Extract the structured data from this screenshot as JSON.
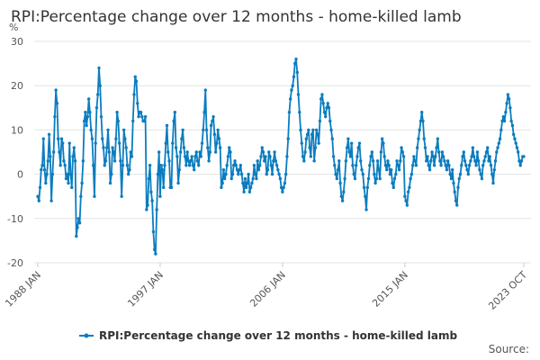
{
  "chart_data": {
    "type": "line",
    "title": "RPI:Percentage change over 12 months - home-killed lamb",
    "y_label": "%",
    "source": "Source:",
    "categories": [
      "1988 JAN",
      null,
      null,
      null,
      null,
      null,
      null,
      null,
      null,
      null,
      null,
      null,
      null,
      null,
      null,
      null,
      null,
      null,
      null,
      null,
      null,
      null,
      null,
      null,
      null,
      null,
      null,
      null,
      null,
      null,
      null,
      null,
      null,
      null,
      null,
      null,
      null,
      null,
      null,
      null,
      null,
      null,
      null,
      null,
      null,
      null,
      null,
      null,
      null,
      null,
      null,
      null,
      null,
      null,
      null,
      null,
      null,
      null,
      null,
      null,
      null,
      null,
      null,
      null,
      null,
      null,
      null,
      null,
      null,
      null,
      null,
      null,
      null,
      null,
      null,
      null,
      null,
      null,
      null,
      null,
      null,
      null,
      null,
      null,
      null,
      null,
      null,
      null,
      null,
      null,
      null,
      null,
      null,
      null,
      null,
      null,
      null,
      null,
      null,
      null,
      null,
      null,
      null,
      null,
      null,
      null,
      null,
      null,
      "1997 JAN",
      null,
      null,
      null,
      null,
      null,
      null,
      null,
      null,
      null,
      null,
      null,
      null,
      null,
      null,
      null,
      null,
      null,
      null,
      null,
      null,
      null,
      null,
      null,
      null,
      null,
      null,
      null,
      null,
      null,
      null,
      null,
      null,
      null,
      null,
      null,
      null,
      null,
      null,
      null,
      null,
      null,
      null,
      null,
      null,
      null,
      null,
      null,
      null,
      null,
      null,
      null,
      null,
      null,
      null,
      null,
      null,
      null,
      null,
      null,
      null,
      null,
      null,
      null,
      null,
      null,
      null,
      null,
      null,
      null,
      null,
      null,
      null,
      null,
      null,
      null,
      null,
      null,
      null,
      null,
      null,
      null,
      null,
      null,
      null,
      null,
      null,
      null,
      null,
      null,
      null,
      null,
      null,
      null,
      null,
      null,
      null,
      null,
      null,
      null,
      null,
      null,
      null,
      null,
      null,
      null,
      null,
      null,
      "2006 JAN",
      null,
      null,
      null,
      null,
      null,
      null,
      null,
      null,
      null,
      null,
      null,
      null,
      null,
      null,
      null,
      null,
      null,
      null,
      null,
      null,
      null,
      null,
      null,
      null,
      null,
      null,
      null,
      null,
      null,
      null,
      null,
      null,
      null,
      null,
      null,
      null,
      null,
      null,
      null,
      null,
      null,
      null,
      null,
      null,
      null,
      null,
      null,
      null,
      null,
      null,
      null,
      null,
      null,
      null,
      null,
      null,
      null,
      null,
      null,
      null,
      null,
      null,
      null,
      null,
      null,
      null,
      null,
      null,
      null,
      null,
      null,
      null,
      null,
      null,
      null,
      null,
      null,
      null,
      null,
      null,
      null,
      null,
      null,
      null,
      null,
      null,
      null,
      null,
      null,
      null,
      null,
      null,
      null,
      null,
      null,
      null,
      null,
      null,
      null,
      null,
      null,
      null,
      null,
      null,
      null,
      null,
      null,
      "2015 JAN",
      null,
      null,
      null,
      null,
      null,
      null,
      null,
      null,
      null,
      null,
      null,
      null,
      null,
      null,
      null,
      null,
      null,
      null,
      null,
      null,
      null,
      null,
      null,
      null,
      null,
      null,
      null,
      null,
      null,
      null,
      null,
      null,
      null,
      null,
      null,
      null,
      null,
      null,
      null,
      null,
      null,
      null,
      null,
      null,
      null,
      null,
      null,
      null,
      null,
      null,
      null,
      null,
      null,
      null,
      null,
      null,
      null,
      null,
      null,
      null,
      null,
      null,
      null,
      null,
      null,
      null,
      null,
      null,
      null,
      null,
      null,
      null,
      null,
      null,
      null,
      null,
      null,
      null,
      null,
      null,
      null,
      null,
      null,
      null,
      null,
      null,
      null,
      null,
      null,
      null,
      null,
      null,
      null,
      null,
      null,
      null,
      null,
      null,
      null,
      null,
      null,
      null,
      null,
      null,
      "2023 OCT"
    ],
    "series": [
      {
        "name": "RPI:Percentage change over 12 months - home-killed lamb",
        "color": "#0b7dbf",
        "values": [
          -5,
          -6,
          -3,
          1,
          2,
          8,
          1,
          -2,
          0,
          3,
          9,
          4,
          -6,
          0,
          5,
          13,
          19,
          16,
          8,
          5,
          2,
          8,
          7,
          3,
          2,
          -1,
          0,
          -2,
          7,
          0,
          -3,
          4,
          6,
          3,
          -14,
          -12,
          -10,
          -11,
          -5,
          -2,
          3,
          12,
          14,
          11,
          13,
          17,
          14,
          10,
          8,
          2,
          -5,
          7,
          15,
          18,
          24,
          20,
          13,
          8,
          6,
          2,
          3,
          6,
          10,
          5,
          -2,
          0,
          6,
          5,
          3,
          8,
          14,
          12,
          7,
          3,
          -5,
          2,
          10,
          8,
          6,
          2,
          0,
          1,
          5,
          4,
          12,
          18,
          22,
          21,
          16,
          13,
          14,
          14,
          13,
          12,
          12,
          13,
          -8,
          -7,
          -1,
          2,
          -4,
          -6,
          -13,
          -17,
          -18,
          -8,
          0,
          5,
          -5,
          2,
          1,
          -3,
          2,
          7,
          11,
          5,
          3,
          -3,
          -3,
          7,
          12,
          14,
          6,
          4,
          -2,
          1,
          5,
          8,
          10,
          6,
          4,
          2,
          5,
          3,
          2,
          3,
          4,
          2,
          1,
          4,
          5,
          3,
          2,
          5,
          4,
          7,
          10,
          14,
          19,
          10,
          6,
          3,
          5,
          11,
          12,
          13,
          9,
          5,
          7,
          10,
          8,
          6,
          -3,
          -2,
          1,
          -1,
          0,
          2,
          4,
          6,
          5,
          -1,
          0,
          2,
          3,
          2,
          1,
          0,
          1,
          2,
          0,
          -2,
          -4,
          -1,
          -3,
          -2,
          0,
          -4,
          -3,
          -2,
          -1,
          2,
          0,
          -1,
          3,
          1,
          2,
          4,
          6,
          5,
          3,
          4,
          0,
          1,
          5,
          4,
          2,
          0,
          3,
          5,
          3,
          2,
          1,
          0,
          -1,
          -3,
          -4,
          -3,
          -2,
          0,
          4,
          8,
          14,
          17,
          19,
          20,
          22,
          25,
          26,
          23,
          18,
          14,
          10,
          7,
          4,
          3,
          5,
          8,
          9,
          10,
          6,
          4,
          9,
          10,
          3,
          6,
          10,
          9,
          7,
          12,
          17,
          18,
          16,
          14,
          13,
          15,
          16,
          15,
          12,
          10,
          8,
          4,
          2,
          0,
          -1,
          1,
          3,
          -2,
          -5,
          -6,
          -4,
          -1,
          3,
          6,
          8,
          5,
          4,
          7,
          2,
          0,
          -1,
          2,
          4,
          6,
          7,
          3,
          1,
          0,
          -3,
          -5,
          -8,
          -3,
          -1,
          2,
          4,
          5,
          3,
          0,
          -2,
          -1,
          3,
          1,
          -1,
          5,
          8,
          7,
          4,
          2,
          1,
          3,
          2,
          0,
          1,
          -2,
          -3,
          -1,
          0,
          3,
          2,
          1,
          3,
          6,
          5,
          4,
          -5,
          -6,
          -7,
          -4,
          -3,
          -1,
          0,
          2,
          4,
          3,
          2,
          6,
          8,
          10,
          12,
          14,
          12,
          8,
          6,
          3,
          4,
          2,
          1,
          3,
          5,
          4,
          2,
          4,
          6,
          8,
          5,
          3,
          2,
          5,
          4,
          3,
          2,
          1,
          3,
          2,
          0,
          -1,
          1,
          -2,
          -4,
          -6,
          -7,
          -3,
          -1,
          0,
          2,
          4,
          5,
          3,
          2,
          1,
          0,
          2,
          3,
          4,
          6,
          4,
          3,
          2,
          5,
          3,
          1,
          0,
          -1,
          2,
          3,
          4,
          5,
          6,
          3,
          4,
          2,
          0,
          -2,
          1,
          3,
          5,
          6,
          7,
          8,
          10,
          12,
          13,
          12,
          14,
          16,
          18,
          17,
          15,
          12,
          11,
          9,
          8,
          7,
          6,
          5,
          3,
          2,
          3,
          4,
          4
        ]
      }
    ],
    "ylim": [
      -20,
      30
    ],
    "yticks": [
      -20,
      -10,
      0,
      10,
      20,
      30
    ],
    "grid": true,
    "legend": "bottom"
  }
}
